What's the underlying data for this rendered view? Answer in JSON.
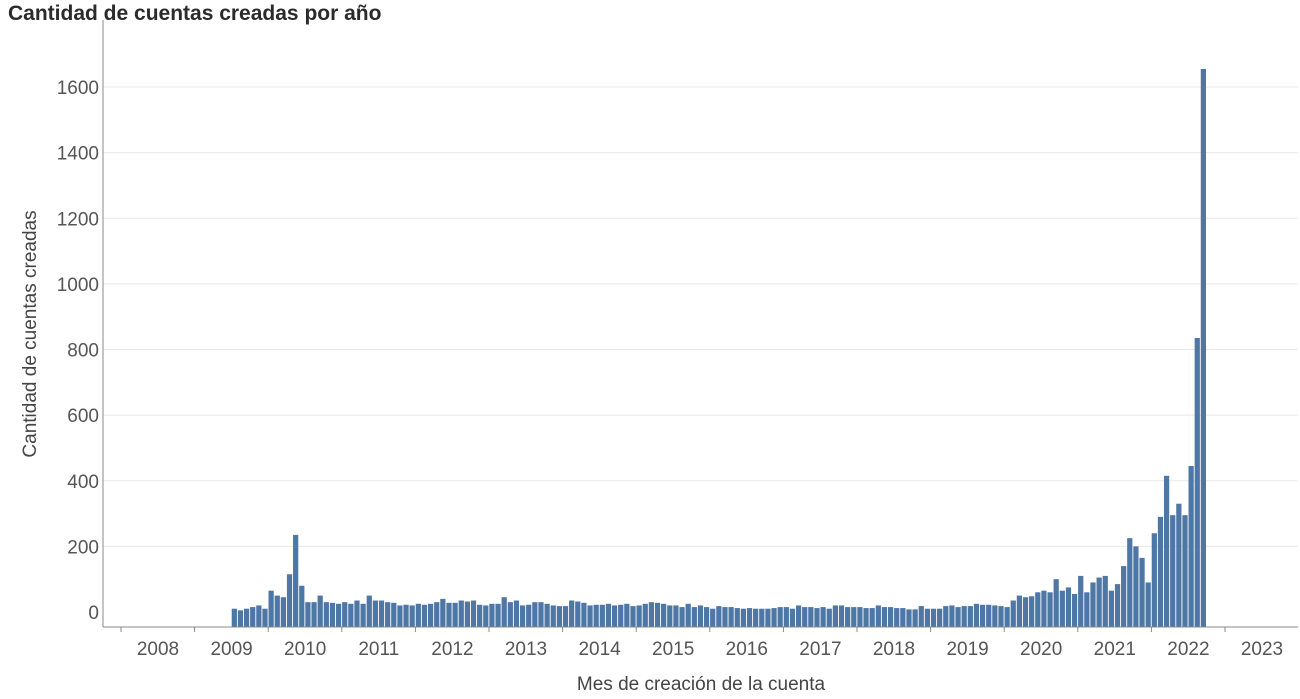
{
  "chart_data": {
    "type": "bar",
    "title": "Cantidad de cuentas creadas por año",
    "xlabel": "Mes de creación de la cuenta",
    "ylabel": "Cantidad de cuentas creadas",
    "ylim": [
      0,
      1700
    ],
    "yticks": [
      0,
      200,
      400,
      600,
      800,
      1000,
      1200,
      1400,
      1600
    ],
    "xticks": [
      "2008",
      "2009",
      "2010",
      "2011",
      "2012",
      "2013",
      "2014",
      "2015",
      "2016",
      "2017",
      "2018",
      "2019",
      "2020",
      "2021",
      "2022",
      "2023"
    ],
    "grid": true,
    "colors": {
      "bar": "#4e77a6",
      "grid": "#e8e8e8",
      "axis": "#888888"
    },
    "series": [
      {
        "start": "2009-07",
        "values": [
          10,
          5,
          10,
          15,
          20,
          10,
          65,
          50,
          45,
          115,
          235,
          80,
          30,
          30,
          50,
          30,
          28,
          25,
          30,
          25,
          35,
          25,
          50,
          35,
          35,
          30,
          28,
          20,
          22,
          20,
          25,
          22,
          25,
          30,
          40,
          28,
          28,
          35,
          32,
          35,
          22,
          20,
          25,
          25,
          45,
          30,
          35,
          20,
          22,
          30,
          30,
          25,
          20,
          18,
          18,
          35,
          32,
          28,
          20,
          22,
          22,
          25,
          20,
          22,
          25,
          18,
          20,
          25,
          30,
          28,
          25,
          20,
          20,
          15,
          25,
          15,
          20,
          15,
          10,
          18,
          15,
          15,
          12,
          10,
          12,
          10,
          10,
          10,
          12,
          15,
          15,
          10,
          20,
          15,
          15,
          12,
          15,
          10,
          20,
          20,
          15,
          15,
          15,
          12,
          12,
          20,
          15,
          15,
          12,
          12,
          8,
          8,
          18,
          10,
          10,
          10,
          18,
          20,
          15,
          18,
          18,
          25,
          22,
          22,
          20,
          18,
          15,
          35,
          50,
          45,
          48,
          60,
          65,
          60,
          100,
          65,
          75,
          55,
          110,
          60,
          90,
          105,
          110,
          65,
          85,
          140,
          225,
          200,
          165,
          90,
          240,
          290,
          415,
          295,
          330,
          295,
          445,
          835,
          1655
        ]
      }
    ]
  }
}
